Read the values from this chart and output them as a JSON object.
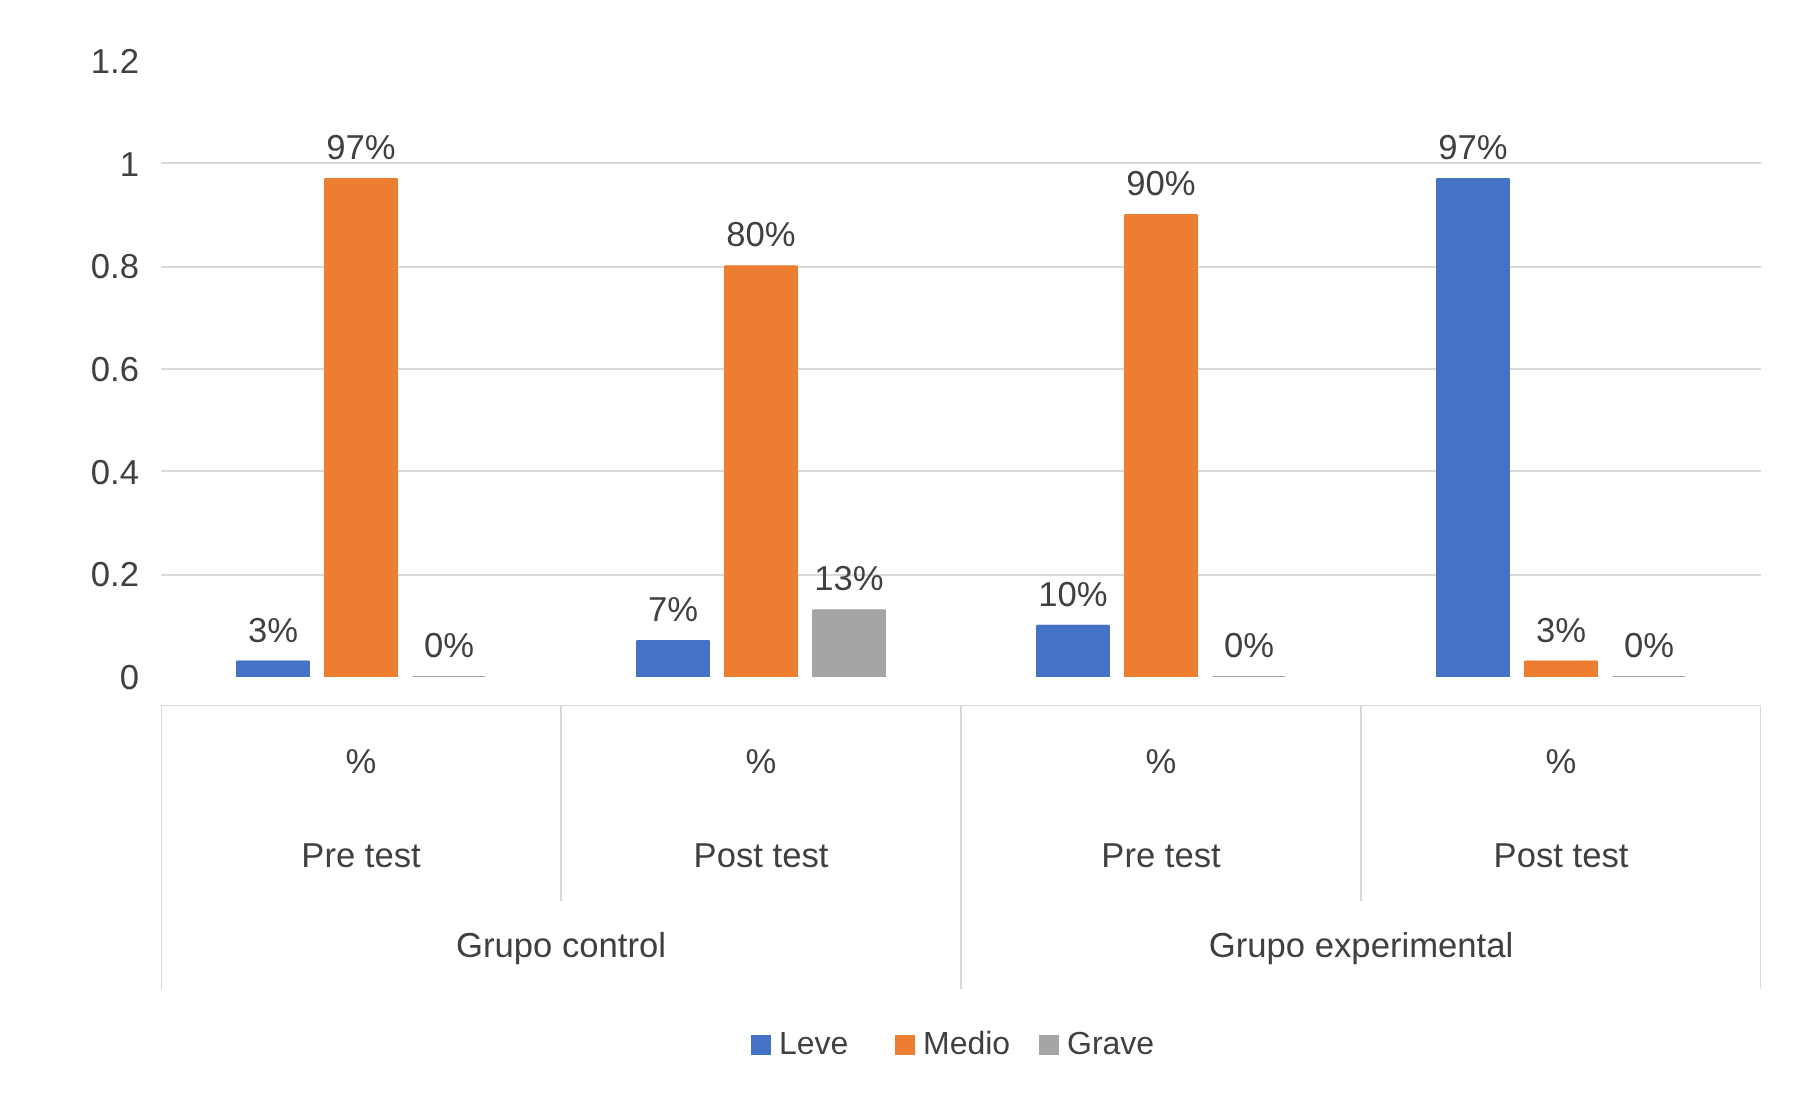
{
  "chart_data": {
    "type": "bar",
    "categories": [
      "%",
      "%",
      "%",
      "%"
    ],
    "annotations": [
      "Pre test",
      "Post test",
      "Pre test",
      "Post test",
      "Grupo control",
      "Grupo experimental"
    ],
    "series": [
      {
        "name": "Leve",
        "color": "#4472c4",
        "values": [
          0.03,
          0.07,
          0.1,
          0.97
        ],
        "value_labels": [
          "3%",
          "7%",
          "10%",
          "97%"
        ]
      },
      {
        "name": "Medio",
        "color": "#ed7d31",
        "values": [
          0.97,
          0.8,
          0.9,
          0.03
        ],
        "value_labels": [
          "97%",
          "80%",
          "90%",
          "3%"
        ]
      },
      {
        "name": "Grave",
        "color": "#a5a5a5",
        "values": [
          0,
          0.13,
          0,
          0
        ],
        "value_labels": [
          "0%",
          "13%",
          "0%",
          "0%"
        ]
      }
    ],
    "ylim": [
      0,
      1.2
    ],
    "yticks": [
      0,
      0.2,
      0.4,
      0.6,
      0.8,
      1,
      1.2
    ],
    "grid": "y",
    "legend": "bottom"
  }
}
